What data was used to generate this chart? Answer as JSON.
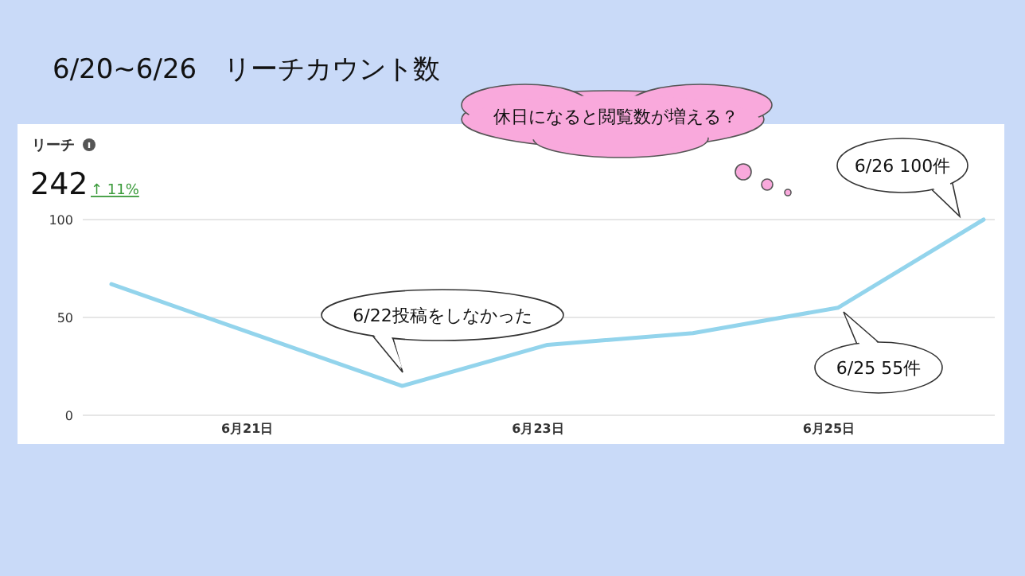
{
  "chart_data": {
    "type": "line",
    "title": "6/20~6/26　リーチカウント数",
    "subtitle": "リーチ",
    "categories": [
      null,
      "6月21日",
      null,
      "6月23日",
      null,
      "6月25日",
      null
    ],
    "series": [
      {
        "color": "#93d4ec",
        "values": [
          67,
          41,
          15,
          36,
          42,
          55,
          100
        ]
      }
    ],
    "ylim": [
      0,
      100
    ],
    "yticks": [
      0,
      50,
      100
    ],
    "grid": "y",
    "marker": "none",
    "line_style": "solid",
    "annotations": [
      "242",
      "↑ 11%",
      "休日になると閲覧数が増える？",
      "6/22投稿をしなかった",
      "6/25 55件",
      "6/26 100件"
    ]
  }
}
